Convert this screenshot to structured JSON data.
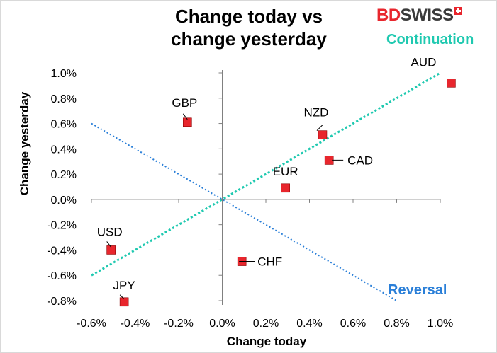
{
  "chart_data": {
    "type": "scatter",
    "title": "Change today vs change yesterday",
    "title_lines": [
      "Change today vs",
      "change yesterday"
    ],
    "xlabel": "Change today",
    "ylabel": "Change yesterday",
    "xlim": [
      -0.6,
      1.0
    ],
    "ylim": [
      -0.8,
      1.0
    ],
    "x_ticks": [
      -0.6,
      -0.4,
      -0.2,
      0.0,
      0.2,
      0.4,
      0.6,
      0.8,
      1.0
    ],
    "y_ticks": [
      -0.8,
      -0.6,
      -0.4,
      -0.2,
      0.0,
      0.2,
      0.4,
      0.6,
      0.8,
      1.0
    ],
    "x_tick_labels": [
      "-0.6%",
      "-0.4%",
      "-0.2%",
      "0.0%",
      "0.2%",
      "0.4%",
      "0.6%",
      "0.8%",
      "1.0%"
    ],
    "y_tick_labels": [
      "-0.8%",
      "-0.6%",
      "-0.4%",
      "-0.2%",
      "0.0%",
      "0.2%",
      "0.4%",
      "0.6%",
      "0.8%",
      "1.0%"
    ],
    "grid": false,
    "marker_color": "#e8262d",
    "points": [
      {
        "label": "AUD",
        "x": 1.05,
        "y": 0.92
      },
      {
        "label": "NZD",
        "x": 0.46,
        "y": 0.51
      },
      {
        "label": "CAD",
        "x": 0.49,
        "y": 0.31
      },
      {
        "label": "EUR",
        "x": 0.29,
        "y": 0.09
      },
      {
        "label": "GBP",
        "x": -0.16,
        "y": 0.61
      },
      {
        "label": "CHF",
        "x": 0.09,
        "y": -0.49
      },
      {
        "label": "USD",
        "x": -0.51,
        "y": -0.4
      },
      {
        "label": "JPY",
        "x": -0.45,
        "y": -0.81
      }
    ],
    "reference_lines": [
      {
        "name": "Continuation",
        "color": "#1fc9b0",
        "x": [
          -0.6,
          1.0
        ],
        "y": [
          -0.6,
          1.0
        ]
      },
      {
        "name": "Reversal",
        "color": "#2a7fd8",
        "x": [
          -0.6,
          0.8
        ],
        "y": [
          0.6,
          -0.8
        ]
      }
    ]
  },
  "brand": {
    "part1": "BD",
    "part2": "SWISS"
  }
}
